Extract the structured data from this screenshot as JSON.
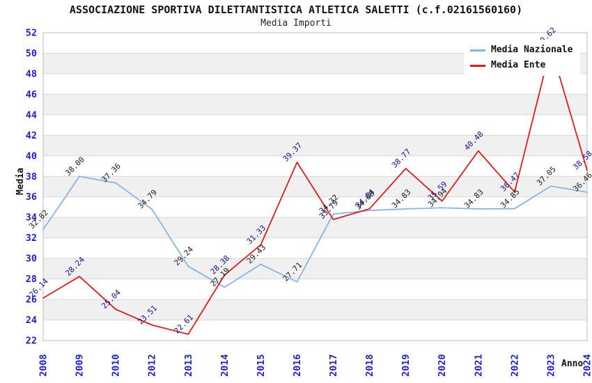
{
  "chart_data": {
    "type": "line",
    "title": "ASSOCIAZIONE SPORTIVA DILETTANTISTICA ATLETICA SALETTI (c.f.02161560160)",
    "subtitle": "Media Importi",
    "xlabel": "Anno",
    "ylabel": "Media",
    "ylim": [
      22,
      52
    ],
    "ytick_step": 2,
    "grid": "horizontal gridlines with alternating white/gray bands every 2 units",
    "legend_position": "top-right",
    "categories": [
      "2008",
      "2009",
      "2010",
      "2012",
      "2013",
      "2014",
      "2015",
      "2016",
      "2017",
      "2018",
      "2019",
      "2020",
      "2021",
      "2022",
      "2023",
      "2024"
    ],
    "series": [
      {
        "name": "Media Nazionale",
        "color": "#87b4e6",
        "label_color": "#1a1a1a",
        "values": [
          32.82,
          38.0,
          37.36,
          34.79,
          29.24,
          27.19,
          29.43,
          27.71,
          34.32,
          34.68,
          34.83,
          34.94,
          34.83,
          34.85,
          37.05,
          36.46
        ]
      },
      {
        "name": "Media Ente",
        "color": "#e41a1a",
        "label_color": "#11118e",
        "values": [
          26.14,
          28.24,
          25.04,
          23.51,
          22.61,
          28.38,
          31.33,
          39.37,
          33.79,
          34.84,
          38.77,
          35.59,
          40.48,
          36.47,
          50.62,
          38.58
        ]
      }
    ],
    "colors": {
      "tick": "#2121cc",
      "band": "#f0f0f0",
      "gridline": "#d8d8d8",
      "border": "#bdbdbd"
    }
  }
}
